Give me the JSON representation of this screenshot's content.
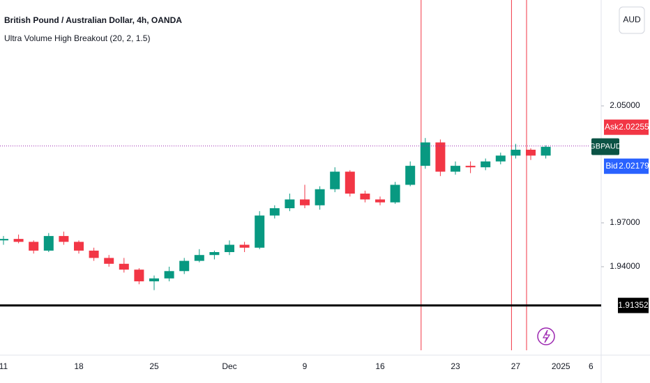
{
  "chart_data": {
    "type": "candlestick",
    "title": "British Pound / Australian Dollar, 4h, OANDA",
    "subtitle": "Ultra Volume High Breakout (20, 2, 1.5)",
    "currency": "AUD",
    "symbol": "GBPAUD",
    "categories": [
      "11",
      null,
      null,
      null,
      null,
      "18",
      null,
      null,
      null,
      null,
      "25",
      null,
      null,
      null,
      null,
      "Dec",
      null,
      null,
      null,
      null,
      "9",
      null,
      null,
      null,
      null,
      "16",
      null,
      null,
      null,
      null,
      "23",
      null,
      null,
      null,
      "27",
      null,
      null,
      "2025",
      null,
      "6"
    ],
    "open": [
      1.958,
      1.959,
      1.957,
      1.951,
      1.961,
      1.957,
      1.951,
      1.946,
      1.942,
      1.938,
      1.93,
      1.932,
      1.937,
      1.944,
      1.948,
      1.95,
      1.955,
      1.953,
      1.975,
      1.98,
      1.986,
      1.982,
      1.993,
      2.005,
      1.99,
      1.986,
      1.984,
      1.996,
      2.009,
      2.025,
      2.005,
      2.009,
      2.008,
      2.012,
      2.016,
      2.02,
      2.016,
      null,
      null,
      null
    ],
    "high": [
      1.961,
      1.962,
      1.958,
      1.963,
      1.964,
      1.958,
      1.953,
      1.948,
      1.946,
      1.939,
      1.934,
      1.94,
      1.946,
      1.952,
      1.951,
      1.958,
      1.957,
      1.978,
      1.982,
      1.99,
      1.996,
      1.995,
      2.008,
      2.006,
      1.992,
      1.988,
      1.998,
      2.012,
      2.028,
      2.027,
      2.012,
      2.012,
      2.014,
      2.018,
      2.024,
      2.021,
      2.023,
      null,
      null,
      null
    ],
    "low": [
      1.955,
      1.956,
      1.949,
      1.95,
      1.955,
      1.949,
      1.944,
      1.94,
      1.936,
      1.928,
      1.924,
      1.93,
      1.935,
      1.943,
      1.945,
      1.948,
      1.95,
      1.952,
      1.973,
      1.978,
      1.98,
      1.979,
      1.991,
      1.988,
      1.984,
      1.982,
      1.983,
      1.995,
      2.007,
      2.002,
      2.003,
      2.004,
      2.006,
      2.01,
      2.014,
      2.013,
      2.014,
      null,
      null,
      null
    ],
    "close": [
      1.959,
      1.957,
      1.951,
      1.961,
      1.957,
      1.951,
      1.946,
      1.942,
      1.938,
      1.93,
      1.932,
      1.937,
      1.944,
      1.948,
      1.95,
      1.955,
      1.953,
      1.975,
      1.98,
      1.986,
      1.982,
      1.993,
      2.005,
      1.99,
      1.986,
      1.984,
      1.996,
      2.009,
      2.025,
      2.005,
      2.009,
      2.008,
      2.012,
      2.016,
      2.02,
      2.016,
      2.022,
      null,
      null,
      null
    ],
    "up_color": "#089981",
    "down_color": "#f23645",
    "breakout_bars": [
      28,
      34,
      35
    ],
    "breakout_color": "#f23645",
    "ylim": [
      1.8819,
      2.1224
    ],
    "yticks": [
      {
        "value": 1.94,
        "label": "1.94000"
      },
      {
        "value": 1.97,
        "label": "1.97000"
      },
      {
        "value": 2.05,
        "label": "2.05000"
      }
    ],
    "ask": {
      "label": "Ask",
      "value": 2.02255
    },
    "bid": {
      "label": "Bid",
      "value": 2.02179
    },
    "level": 1.91352
  }
}
